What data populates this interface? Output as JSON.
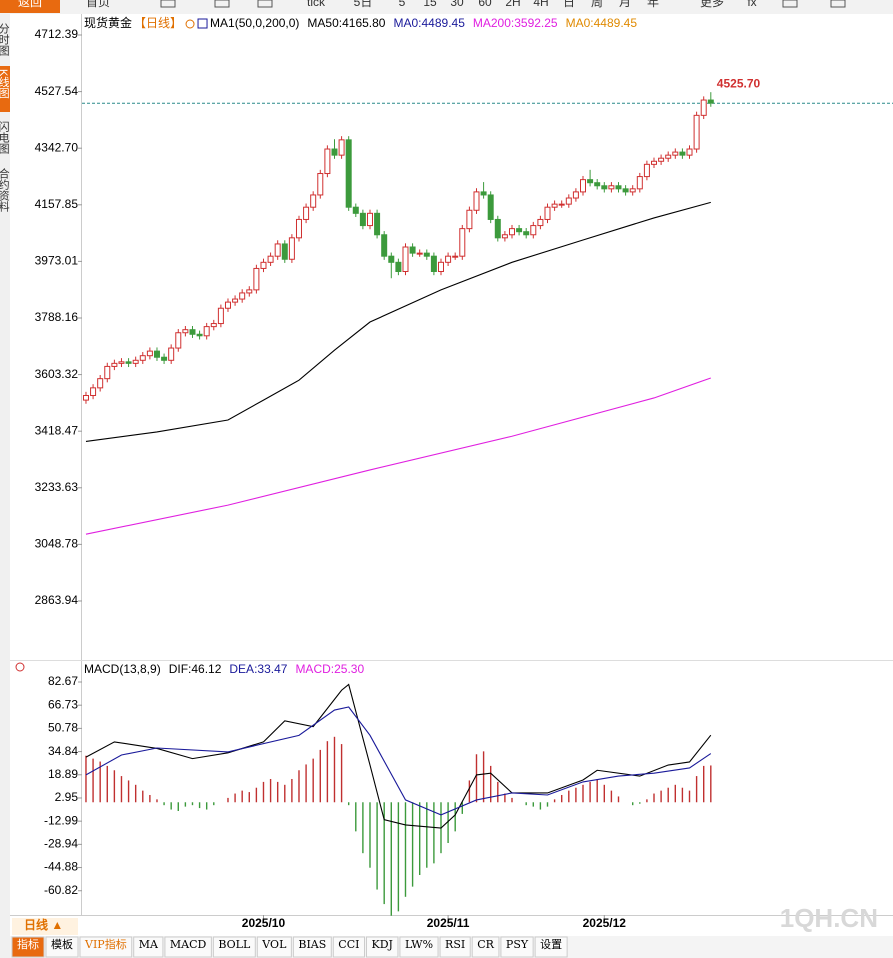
{
  "toolbar": [
    "返回",
    "首页",
    "tick",
    "5日",
    "5",
    "15",
    "30",
    "60",
    "2H",
    "4H",
    "日",
    "周",
    "月",
    "年",
    "更多",
    "fx"
  ],
  "side_tabs": [
    "分时图",
    "K线图",
    "闪电图",
    "合约资料"
  ],
  "bottom_tabs": [
    "指标",
    "模板",
    "VIP指标",
    "MA",
    "MACD",
    "BOLL",
    "VOL",
    "BIAS",
    "CCI",
    "KDJ",
    "LW%",
    "RSI",
    "CR",
    "PSY",
    "设置"
  ],
  "period_label": "日线 ▲",
  "watermark": "1QH.CN",
  "chart_data": [
    {
      "type": "candlestick",
      "title": "现货黄金",
      "period": "【日线】",
      "legend": [
        {
          "text": "MA1(50,0,200,0)",
          "color": "#000000"
        },
        {
          "text": "MA50:4165.80",
          "color": "#000000"
        },
        {
          "text": "MA0:4489.45",
          "color": "#1a1a9a"
        },
        {
          "text": "MA200:3592.25",
          "color": "#e020e0"
        },
        {
          "text": "MA0:4489.45",
          "color": "#e08a00"
        }
      ],
      "up_color": "#d03030",
      "down_color": "#3c9a3c",
      "candles": [
        [
          3520,
          3547,
          3508,
          3535
        ],
        [
          3535,
          3572,
          3523,
          3560
        ],
        [
          3560,
          3602,
          3548,
          3590
        ],
        [
          3590,
          3642,
          3578,
          3630
        ],
        [
          3630,
          3652,
          3618,
          3640
        ],
        [
          3640,
          3657,
          3628,
          3645
        ],
        [
          3645,
          3657,
          3628,
          3640
        ],
        [
          3640,
          3662,
          3628,
          3650
        ],
        [
          3650,
          3677,
          3638,
          3665
        ],
        [
          3665,
          3692,
          3653,
          3680
        ],
        [
          3680,
          3692,
          3648,
          3660
        ],
        [
          3660,
          3672,
          3638,
          3650
        ],
        [
          3650,
          3702,
          3638,
          3690
        ],
        [
          3690,
          3752,
          3678,
          3740
        ],
        [
          3740,
          3762,
          3728,
          3750
        ],
        [
          3750,
          3762,
          3723,
          3735
        ],
        [
          3735,
          3747,
          3718,
          3730
        ],
        [
          3730,
          3772,
          3718,
          3760
        ],
        [
          3760,
          3782,
          3748,
          3770
        ],
        [
          3770,
          3832,
          3758,
          3820
        ],
        [
          3820,
          3852,
          3808,
          3840
        ],
        [
          3840,
          3862,
          3828,
          3850
        ],
        [
          3850,
          3882,
          3838,
          3870
        ],
        [
          3870,
          3892,
          3858,
          3880
        ],
        [
          3880,
          3962,
          3868,
          3950
        ],
        [
          3950,
          3982,
          3938,
          3970
        ],
        [
          3970,
          4002,
          3958,
          3990
        ],
        [
          3990,
          4042,
          3978,
          4030
        ],
        [
          4030,
          4042,
          3968,
          3980
        ],
        [
          3980,
          4062,
          3968,
          4050
        ],
        [
          4050,
          4122,
          4038,
          4110
        ],
        [
          4110,
          4162,
          4098,
          4150
        ],
        [
          4150,
          4202,
          4138,
          4190
        ],
        [
          4190,
          4272,
          4178,
          4260
        ],
        [
          4260,
          4352,
          4248,
          4340
        ],
        [
          4340,
          4372,
          4308,
          4320
        ],
        [
          4320,
          4382,
          4308,
          4370
        ],
        [
          4370,
          4382,
          4138,
          4150
        ],
        [
          4150,
          4162,
          4118,
          4130
        ],
        [
          4130,
          4142,
          4078,
          4090
        ],
        [
          4090,
          4142,
          4078,
          4130
        ],
        [
          4130,
          4142,
          4048,
          4060
        ],
        [
          4060,
          4072,
          3978,
          3990
        ],
        [
          3990,
          4002,
          3918,
          3970
        ],
        [
          3970,
          3982,
          3928,
          3940
        ],
        [
          3940,
          4032,
          3928,
          4020
        ],
        [
          4020,
          4032,
          3988,
          4000
        ],
        [
          4000,
          4012,
          3988,
          4000
        ],
        [
          4000,
          4012,
          3978,
          3990
        ],
        [
          3990,
          4002,
          3928,
          3940
        ],
        [
          3940,
          3982,
          3928,
          3970
        ],
        [
          3970,
          4002,
          3958,
          3990
        ],
        [
          3990,
          4002,
          3978,
          3990
        ],
        [
          3990,
          4092,
          3978,
          4080
        ],
        [
          4080,
          4152,
          4068,
          4140
        ],
        [
          4140,
          4212,
          4128,
          4200
        ],
        [
          4200,
          4232,
          4178,
          4190
        ],
        [
          4190,
          4202,
          4098,
          4110
        ],
        [
          4110,
          4122,
          4038,
          4050
        ],
        [
          4050,
          4072,
          4038,
          4060
        ],
        [
          4060,
          4092,
          4048,
          4080
        ],
        [
          4080,
          4092,
          4058,
          4070
        ],
        [
          4070,
          4082,
          4048,
          4060
        ],
        [
          4060,
          4102,
          4048,
          4090
        ],
        [
          4090,
          4122,
          4078,
          4110
        ],
        [
          4110,
          4162,
          4098,
          4150
        ],
        [
          4150,
          4172,
          4138,
          4160
        ],
        [
          4160,
          4172,
          4148,
          4160
        ],
        [
          4160,
          4192,
          4148,
          4180
        ],
        [
          4180,
          4212,
          4168,
          4200
        ],
        [
          4200,
          4252,
          4188,
          4240
        ],
        [
          4240,
          4272,
          4218,
          4230
        ],
        [
          4230,
          4242,
          4208,
          4220
        ],
        [
          4220,
          4232,
          4198,
          4210
        ],
        [
          4210,
          4232,
          4198,
          4220
        ],
        [
          4220,
          4232,
          4198,
          4210
        ],
        [
          4210,
          4222,
          4188,
          4200
        ],
        [
          4200,
          4222,
          4188,
          4210
        ],
        [
          4210,
          4262,
          4198,
          4250
        ],
        [
          4250,
          4302,
          4238,
          4290
        ],
        [
          4290,
          4312,
          4278,
          4300
        ],
        [
          4300,
          4322,
          4288,
          4310
        ],
        [
          4310,
          4332,
          4298,
          4320
        ],
        [
          4320,
          4342,
          4308,
          4330
        ],
        [
          4330,
          4342,
          4308,
          4320
        ],
        [
          4320,
          4352,
          4308,
          4340
        ],
        [
          4340,
          4462,
          4328,
          4450
        ],
        [
          4450,
          4512,
          4438,
          4500
        ],
        [
          4500,
          4525.7,
          4478,
          4490
        ]
      ],
      "high_label": "4525.70",
      "series": [
        {
          "color": "#000000",
          "x": [
            0,
            10,
            20,
            25,
            30,
            35,
            40,
            50,
            60,
            70,
            80,
            88
          ],
          "values": [
            3385,
            3416,
            3455,
            3520,
            3585,
            3683,
            3775,
            3880,
            3970,
            4043,
            4115,
            4165.8
          ]
        },
        {
          "color": "#e020e0",
          "x": [
            0,
            20,
            40,
            60,
            80,
            88
          ],
          "values": [
            3082,
            3177,
            3292,
            3402,
            3527,
            3592.25
          ]
        }
      ],
      "hline": {
        "value": 4489.45,
        "color": "#2a8a8a"
      },
      "ylim": [
        2677.7,
        4771.2
      ],
      "yticks": [
        4712.39,
        4527.54,
        {
          "value": 4342.7,
          "label": "4342.70"
        },
        4157.85,
        3973.01,
        3788.16,
        3603.32,
        3418.47,
        3233.63,
        3048.78,
        2863.94
      ],
      "xlim": [
        -0.56,
        113.66
      ],
      "xticks": [
        {
          "value": 25,
          "label": "2025/10"
        },
        {
          "value": 51,
          "label": "2025/11"
        },
        {
          "value": 73,
          "label": "2025/12"
        }
      ]
    },
    {
      "type": "macd",
      "legend": [
        {
          "text": "MACD(13,8,9)",
          "color": "#000000"
        },
        {
          "text": "DIF:46.12",
          "color": "#000000"
        },
        {
          "text": "DEA:33.47",
          "color": "#1a1a9a"
        },
        {
          "text": "MACD:25.30",
          "color": "#e020e0"
        }
      ],
      "up_color": "#c03030",
      "down_color": "#3c9a3c",
      "histogram": [
        32,
        30,
        28,
        25,
        22,
        18,
        15,
        12,
        8,
        5,
        2,
        -2,
        -5,
        -6,
        -3,
        -2,
        -4,
        -5,
        -2,
        0,
        3,
        6,
        8,
        7,
        10,
        14,
        16,
        14,
        12,
        16,
        22,
        26,
        30,
        36,
        42,
        45,
        40,
        -2,
        -20,
        -35,
        -45,
        -60,
        -70,
        -78,
        -75,
        -65,
        -58,
        -50,
        -45,
        -42,
        -35,
        -28,
        -20,
        -8,
        15,
        33,
        35,
        25,
        14,
        6,
        3,
        0,
        -2,
        -3,
        -5,
        -3,
        2,
        5,
        8,
        10,
        12,
        14,
        16,
        12,
        8,
        4,
        0,
        -2,
        -1,
        2,
        6,
        8,
        10,
        12,
        10,
        8,
        18,
        25,
        25.3
      ],
      "series": [
        {
          "color": "#000000",
          "x": [
            0,
            4,
            10,
            15,
            20,
            25,
            28,
            32,
            36,
            37,
            40,
            42,
            45,
            50,
            52,
            55,
            57,
            60,
            65,
            70,
            72,
            78,
            82,
            85,
            88
          ],
          "values": [
            31,
            41.5,
            37,
            30,
            34,
            41.5,
            56,
            52,
            77,
            81,
            25.6,
            -12,
            -15.6,
            -17.7,
            -8.7,
            18.8,
            20,
            6.4,
            6.4,
            15.3,
            22,
            18,
            25.6,
            27.7,
            46.12
          ]
        },
        {
          "color": "#1a1a9a",
          "x": [
            0,
            5,
            10,
            20,
            30,
            35,
            37,
            40,
            45,
            50,
            55,
            60,
            65,
            70,
            75,
            80,
            85,
            88
          ],
          "values": [
            18.8,
            32.5,
            37.3,
            34.6,
            46,
            63.4,
            65.5,
            46,
            1.6,
            -8.7,
            1.6,
            6.4,
            5,
            14,
            18,
            20,
            23.6,
            33.47
          ]
        }
      ],
      "ylim": [
        -77.5,
        86.8
      ],
      "yticks": [
        82.67,
        66.73,
        50.78,
        34.84,
        18.89,
        2.95,
        -12.99,
        -28.94,
        -44.88,
        -60.82
      ],
      "xlim": [
        -0.56,
        113.66
      ]
    }
  ]
}
